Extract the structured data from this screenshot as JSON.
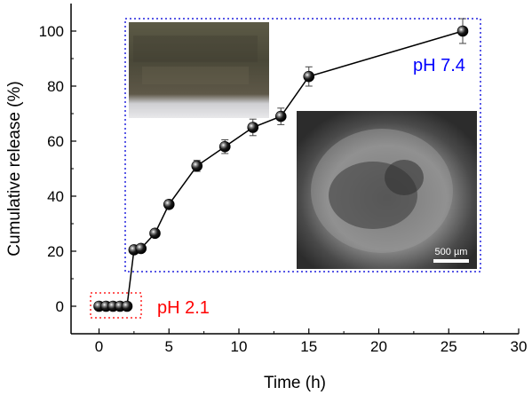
{
  "chart_data": {
    "type": "scatter",
    "xlabel": "Time (h)",
    "ylabel": "Cumulative release (%)",
    "xlim": [
      -2,
      30
    ],
    "ylim": [
      -10,
      110
    ],
    "xticks": [
      0,
      5,
      10,
      15,
      20,
      25,
      30
    ],
    "yticks": [
      0,
      20,
      40,
      60,
      80,
      100
    ],
    "grid": false,
    "series": [
      {
        "x": [
          0,
          0.5,
          1,
          1.5,
          2,
          2.5,
          3,
          4,
          5,
          7,
          9,
          11,
          13,
          15,
          26
        ],
        "y": [
          0,
          0,
          0,
          0,
          0,
          20.5,
          21,
          26.5,
          37,
          51,
          58,
          65,
          69,
          83.5,
          100
        ],
        "error": [
          0,
          0,
          0,
          0,
          0,
          1,
          1,
          1,
          1.5,
          2,
          2.5,
          3,
          3,
          3.5,
          4.5
        ],
        "color": "#000000"
      }
    ],
    "annotations": [
      {
        "text": "pH 2.1",
        "color": "#ff0000"
      },
      {
        "text": "pH 7.4",
        "color": "#0000ff"
      }
    ],
    "inset_scale_bar": "500 µm"
  }
}
